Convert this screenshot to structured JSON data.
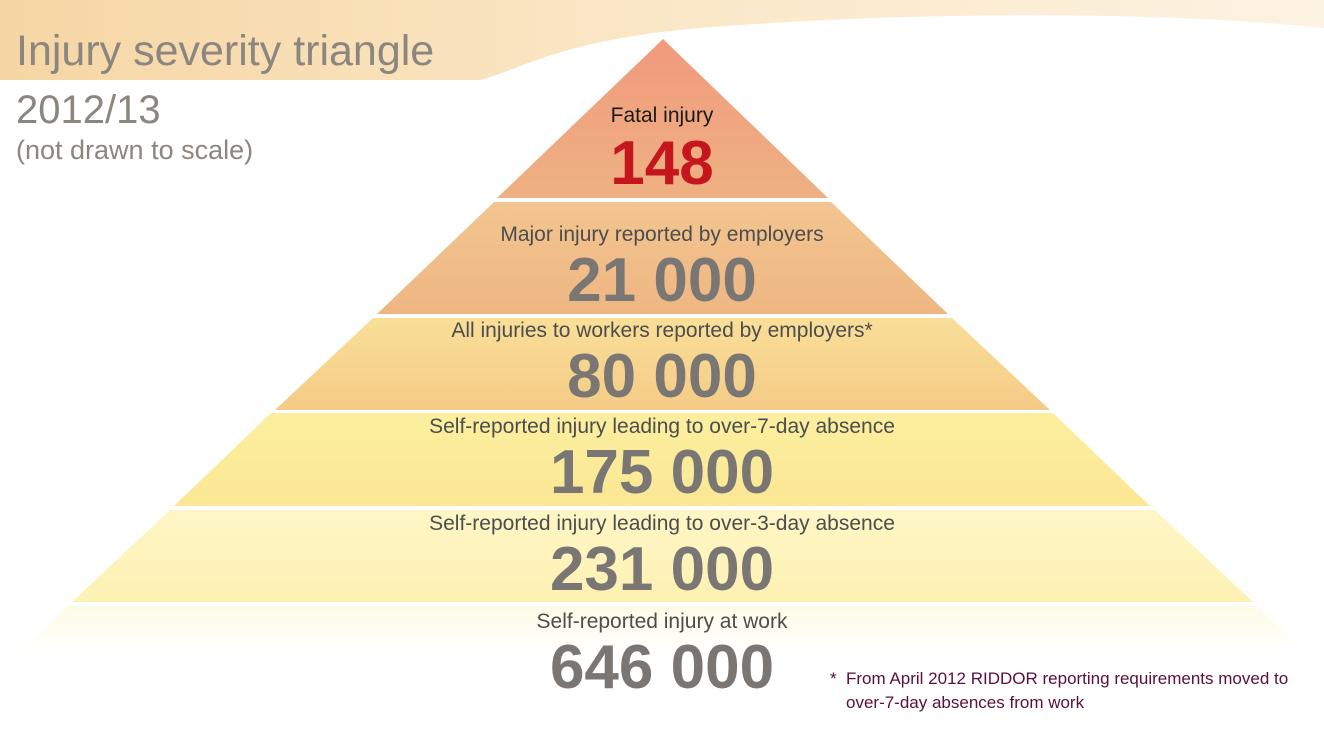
{
  "header": {
    "title": "Injury severity triangle",
    "year": "2012/13",
    "note": "(not drawn to scale)"
  },
  "colors": {
    "text_gray": "#8c8681",
    "value_gray": "#7a7673",
    "fatal_red": "#c5161d",
    "footnote_purple": "#5a0f3a"
  },
  "pyramid": {
    "tiers": [
      {
        "label": "Fatal injury",
        "value": "148",
        "color": "#efa07e"
      },
      {
        "label": "Major injury reported by employers",
        "value": "21 000",
        "color": "#f0bb88"
      },
      {
        "label": "All injuries to workers reported by employers*",
        "value": "80 000",
        "color": "#f7d58f"
      },
      {
        "label": "Self-reported injury leading to over-7-day absence",
        "value": "175 000",
        "color": "#fbec9a"
      },
      {
        "label": "Self-reported injury leading to over-3-day absence",
        "value": "231 000",
        "color": "#fdf3b8"
      },
      {
        "label": "Self-reported injury at work",
        "value": "646 000",
        "color": "#fef9e0"
      }
    ]
  },
  "footnote": {
    "marker": "*",
    "line1": "From April 2012 RIDDOR reporting requirements moved to",
    "line2": "over-7-day absences from work"
  }
}
